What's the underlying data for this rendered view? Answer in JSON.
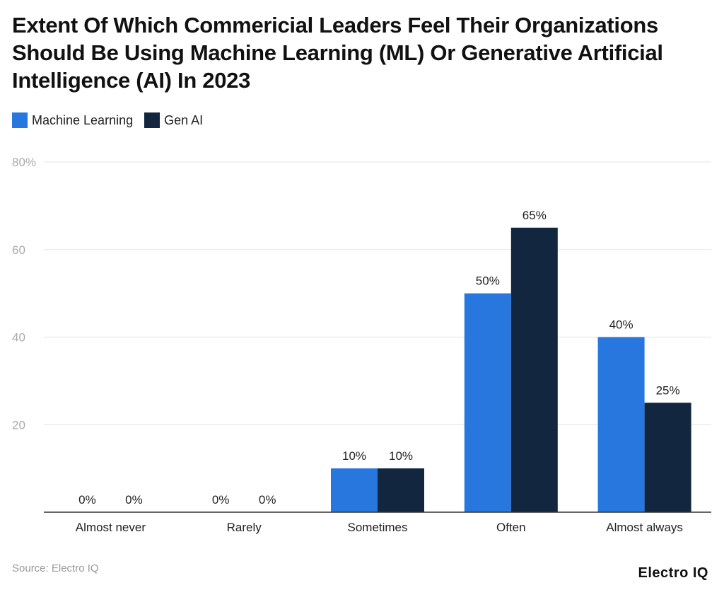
{
  "chart_data": {
    "type": "bar",
    "title": "Extent Of Which Commericial Leaders Feel Their Organizations Should Be Using Machine Learning (ML) Or Generative Artificial Intelligence (AI) In 2023",
    "categories": [
      "Almost never",
      "Rarely",
      "Sometimes",
      "Often",
      "Almost always"
    ],
    "series": [
      {
        "name": "Machine Learning",
        "values": [
          0,
          0,
          10,
          50,
          40
        ],
        "color": "#2777DF"
      },
      {
        "name": "Gen AI",
        "values": [
          0,
          0,
          10,
          65,
          25
        ],
        "color": "#12263F"
      }
    ],
    "data_labels": [
      [
        "0%",
        "0%",
        "10%",
        "50%",
        "40%"
      ],
      [
        "0%",
        "0%",
        "10%",
        "65%",
        "25%"
      ]
    ],
    "yticks": [
      0,
      20,
      40,
      60,
      80
    ],
    "ytick_labels": [
      "",
      "20",
      "40",
      "60",
      "80%"
    ],
    "ylim": [
      0,
      80
    ],
    "grid": true,
    "legend_position": "top-left",
    "xlabel": "",
    "ylabel": ""
  },
  "source": "Source: Electro IQ",
  "logo": "Electro IQ"
}
